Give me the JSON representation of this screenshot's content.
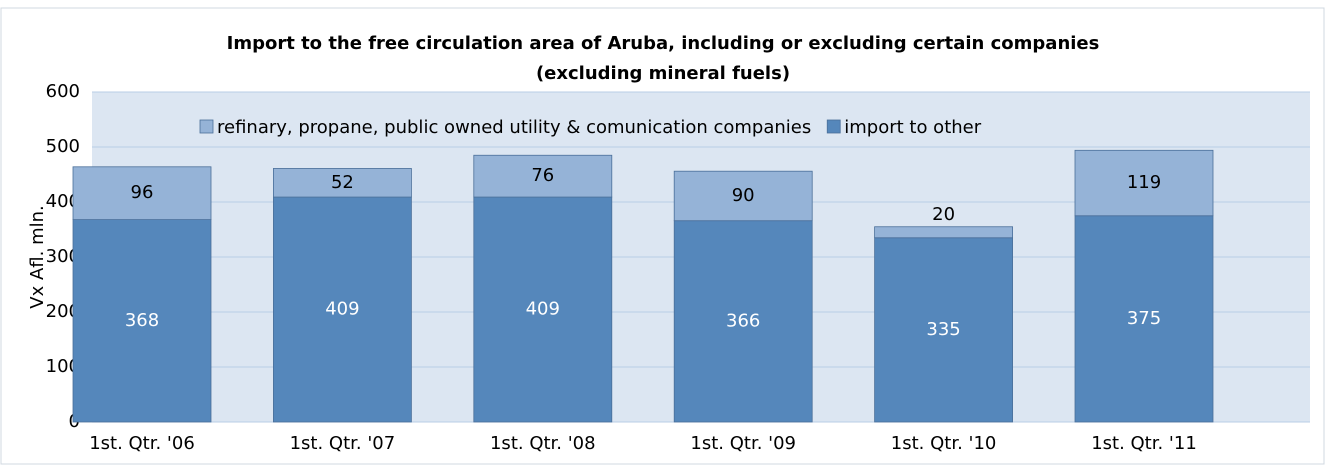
{
  "chart_data": {
    "type": "stacked_bar",
    "title": "Import to the free  circulation area of Aruba, including or excluding certain companies",
    "subtitle": "(excluding mineral fuels)",
    "y_label": "Vx Afl. mln.",
    "categories": [
      "1st. Qtr. '06",
      "1st. Qtr. '07",
      "1st. Qtr. '08",
      "1st. Qtr. '09",
      "1st. Qtr. '10",
      "1st. Qtr. '11"
    ],
    "series": [
      {
        "name": "import to other",
        "color": "#5587bb",
        "values": [
          368,
          409,
          409,
          366,
          335,
          375
        ]
      },
      {
        "name": "refinary, propane, public owned utility & comunication companies",
        "color": "#95b3d7",
        "values": [
          96,
          52,
          76,
          90,
          20,
          119
        ]
      }
    ],
    "ylim": [
      0,
      600
    ],
    "yticks": [
      0,
      100,
      200,
      300,
      400,
      500,
      600
    ],
    "grid": true,
    "legend": "top"
  }
}
